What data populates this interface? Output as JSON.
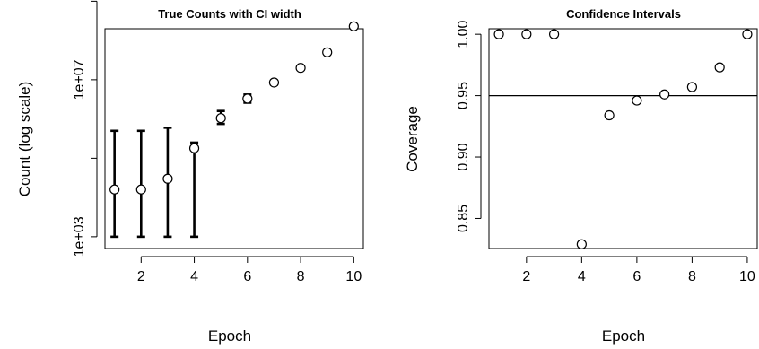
{
  "chart_data": [
    {
      "type": "scatter",
      "title": "True Counts with CI width",
      "xlabel": "Epoch",
      "ylabel": "Count (log scale)",
      "log_y": true,
      "xlim": [
        0.64,
        10.36
      ],
      "ylim_log10": [
        2.7,
        8.3
      ],
      "x_ticks": [
        2,
        4,
        6,
        8,
        10
      ],
      "y_ticks": [
        {
          "value": 1000,
          "label": "1e+03"
        },
        {
          "value": 10000000,
          "label": "1e+07"
        }
      ],
      "y_minor_ticks": [
        100000,
        1000000000
      ],
      "grid": false,
      "error_bars": true,
      "series": [
        {
          "points": [
            {
              "x": 1,
              "y": 16000,
              "lo": 1000,
              "hi": 500000
            },
            {
              "x": 2,
              "y": 16000,
              "lo": 1000,
              "hi": 500000
            },
            {
              "x": 3,
              "y": 30000,
              "lo": 1000,
              "hi": 600000
            },
            {
              "x": 4,
              "y": 180000,
              "lo": 1000,
              "hi": 250000
            },
            {
              "x": 5,
              "y": 1050000,
              "lo": 750000,
              "hi": 1600000
            },
            {
              "x": 6,
              "y": 3300000,
              "lo": 2600000,
              "hi": 4200000
            },
            {
              "x": 7,
              "y": 8500000,
              "lo": 7500000,
              "hi": 9600000
            },
            {
              "x": 8,
              "y": 20000000,
              "lo": 18500000,
              "hi": 21500000
            },
            {
              "x": 9,
              "y": 50000000,
              "lo": 47000000,
              "hi": 53000000
            },
            {
              "x": 10,
              "y": 230000000,
              "lo": 220000000,
              "hi": 240000000
            }
          ]
        }
      ]
    },
    {
      "type": "scatter",
      "title": "Confidence Intervals",
      "xlabel": "Epoch",
      "ylabel": "Coverage",
      "xlim": [
        0.64,
        10.36
      ],
      "ylim": [
        0.8255,
        1.0045
      ],
      "x_ticks": [
        2,
        4,
        6,
        8,
        10
      ],
      "y_ticks": [
        {
          "value": 0.85,
          "label": "0.85"
        },
        {
          "value": 0.9,
          "label": "0.90"
        },
        {
          "value": 0.95,
          "label": "0.95"
        },
        {
          "value": 1.0,
          "label": "1.00"
        }
      ],
      "reference_line": 0.95,
      "grid": false,
      "series": [
        {
          "points": [
            {
              "x": 1,
              "y": 1.0
            },
            {
              "x": 2,
              "y": 1.0
            },
            {
              "x": 3,
              "y": 1.0
            },
            {
              "x": 4,
              "y": 0.829
            },
            {
              "x": 5,
              "y": 0.934
            },
            {
              "x": 6,
              "y": 0.946
            },
            {
              "x": 7,
              "y": 0.951
            },
            {
              "x": 8,
              "y": 0.957
            },
            {
              "x": 9,
              "y": 0.973
            },
            {
              "x": 10,
              "y": 1.0
            }
          ]
        }
      ]
    }
  ]
}
